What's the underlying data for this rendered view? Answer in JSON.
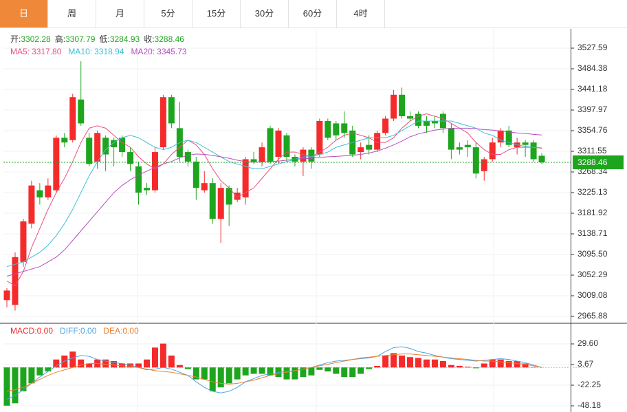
{
  "tabs": [
    "日",
    "周",
    "月",
    "5分",
    "15分",
    "30分",
    "60分",
    "4时"
  ],
  "active_tab": 0,
  "chart_data": [
    {
      "type": "candlestick",
      "up_color": "#f52b2b",
      "down_color": "#1ea51e",
      "info": {
        "open": "开:",
        "high": "高:",
        "low": "低:",
        "close": "收:"
      },
      "open": [
        3000,
        2990,
        3080,
        3160,
        3230,
        3215,
        3230,
        3340,
        3335,
        3420,
        3340,
        3290,
        3340,
        3335,
        3340,
        3310,
        3280,
        3235,
        3230,
        3320,
        3425,
        3360,
        3310,
        3290,
        3230,
        3245,
        3170,
        3235,
        3210,
        3215,
        3295,
        3290,
        3360,
        3300,
        3345,
        3300,
        3290,
        3315,
        3305,
        3375,
        3370,
        3370,
        3355,
        3310,
        3325,
        3315,
        3350,
        3380,
        3430,
        3385,
        3390,
        3375,
        3375,
        3390,
        3360,
        3320,
        3325,
        3320,
        3270,
        3295,
        3330,
        3355,
        3320,
        3330,
        3330,
        3302.28
      ],
      "high": [
        3025,
        3100,
        3170,
        3250,
        3245,
        3255,
        3345,
        3350,
        3432,
        3500,
        3350,
        3355,
        3345,
        3340,
        3345,
        3320,
        3290,
        3245,
        3320,
        3430,
        3430,
        3415,
        3315,
        3300,
        3270,
        3255,
        3245,
        3240,
        3235,
        3300,
        3310,
        3330,
        3365,
        3360,
        3350,
        3305,
        3320,
        3320,
        3380,
        3380,
        3375,
        3395,
        3365,
        3330,
        3345,
        3355,
        3385,
        3440,
        3445,
        3395,
        3395,
        3385,
        3385,
        3395,
        3370,
        3330,
        3335,
        3330,
        3300,
        3340,
        3360,
        3365,
        3340,
        3335,
        3335,
        3307.79
      ],
      "low": [
        2985,
        2978,
        3070,
        3150,
        3200,
        3210,
        3225,
        3320,
        3330,
        3365,
        3280,
        3275,
        3270,
        3280,
        3300,
        3270,
        3200,
        3220,
        3225,
        3315,
        3360,
        3290,
        3280,
        3210,
        3225,
        3160,
        3120,
        3155,
        3205,
        3200,
        3285,
        3280,
        3285,
        3285,
        3290,
        3280,
        3260,
        3275,
        3300,
        3335,
        3335,
        3340,
        3300,
        3295,
        3305,
        3310,
        3345,
        3375,
        3380,
        3375,
        3360,
        3350,
        3360,
        3350,
        3295,
        3305,
        3300,
        3255,
        3250,
        3290,
        3320,
        3320,
        3305,
        3300,
        3290,
        3284.93
      ],
      "close": [
        3020,
        3090,
        3165,
        3240,
        3215,
        3240,
        3340,
        3330,
        3425,
        3370,
        3285,
        3350,
        3305,
        3320,
        3310,
        3285,
        3225,
        3230,
        3310,
        3425,
        3370,
        3300,
        3290,
        3235,
        3245,
        3170,
        3235,
        3200,
        3225,
        3295,
        3290,
        3320,
        3290,
        3355,
        3300,
        3290,
        3315,
        3290,
        3375,
        3340,
        3345,
        3350,
        3305,
        3320,
        3315,
        3350,
        3380,
        3430,
        3385,
        3380,
        3365,
        3365,
        3370,
        3360,
        3315,
        3315,
        3320,
        3265,
        3295,
        3330,
        3355,
        3325,
        3330,
        3325,
        3295,
        3288.46
      ],
      "series": [
        {
          "name": "MA5:",
          "color": "#e8517e",
          "last_label": "3317.80",
          "values": [
            3040,
            3030,
            3060,
            3110,
            3150,
            3190,
            3225,
            3255,
            3290,
            3330,
            3360,
            3365,
            3360,
            3345,
            3330,
            3320,
            3300,
            3285,
            3275,
            3285,
            3305,
            3320,
            3335,
            3325,
            3305,
            3275,
            3250,
            3235,
            3215,
            3225,
            3235,
            3255,
            3275,
            3295,
            3310,
            3310,
            3305,
            3300,
            3310,
            3320,
            3335,
            3345,
            3350,
            3345,
            3340,
            3330,
            3330,
            3340,
            3360,
            3375,
            3385,
            3390,
            3385,
            3380,
            3370,
            3360,
            3350,
            3330,
            3315,
            3305,
            3305,
            3315,
            3320,
            3320,
            3320,
            3317.8
          ]
        },
        {
          "name": "MA10:",
          "color": "#3cbfd8",
          "last_label": "3318.94",
          "values": [
            3070,
            3075,
            3080,
            3090,
            3100,
            3115,
            3135,
            3160,
            3190,
            3225,
            3260,
            3290,
            3315,
            3330,
            3340,
            3345,
            3340,
            3330,
            3320,
            3315,
            3320,
            3330,
            3335,
            3330,
            3320,
            3310,
            3300,
            3290,
            3285,
            3280,
            3275,
            3275,
            3280,
            3285,
            3290,
            3295,
            3300,
            3300,
            3305,
            3310,
            3320,
            3325,
            3330,
            3335,
            3340,
            3340,
            3340,
            3345,
            3355,
            3365,
            3375,
            3375,
            3375,
            3375,
            3375,
            3370,
            3365,
            3360,
            3350,
            3345,
            3335,
            3330,
            3325,
            3322,
            3320,
            3318.94
          ]
        },
        {
          "name": "MA20:",
          "color": "#b54fbf",
          "last_label": "3345.73",
          "values": [
            3050,
            3055,
            3060,
            3065,
            3070,
            3080,
            3090,
            3105,
            3125,
            3145,
            3165,
            3185,
            3205,
            3225,
            3240,
            3252,
            3262,
            3270,
            3278,
            3285,
            3290,
            3298,
            3303,
            3306,
            3305,
            3303,
            3300,
            3297,
            3293,
            3290,
            3289,
            3289,
            3290,
            3291,
            3293,
            3295,
            3296,
            3297,
            3299,
            3300,
            3301,
            3302,
            3303,
            3305,
            3308,
            3312,
            3318,
            3325,
            3333,
            3342,
            3348,
            3352,
            3356,
            3358,
            3360,
            3360,
            3360,
            3359,
            3357,
            3356,
            3354,
            3352,
            3350,
            3349,
            3347,
            3345.73
          ]
        }
      ],
      "ylim": [
        2951.46,
        3567.92
      ],
      "yticks": [
        3527.59,
        3484.38,
        3441.18,
        3397.97,
        3354.76,
        3311.55,
        3268.34,
        3225.13,
        3181.92,
        3138.71,
        {
          "value": 3095.5,
          "label": "3095.50"
        },
        3052.29,
        3009.08,
        2965.88
      ],
      "grid": true
    },
    {
      "type": "macd",
      "up_color": "#f52b2b",
      "down_color": "#1ea51e",
      "hist": {
        "name": "MACD:",
        "last_label": "0.00",
        "values": [
          -48,
          -45,
          -30,
          -20,
          -10,
          -5,
          10,
          15,
          20,
          10,
          5,
          10,
          10,
          8,
          5,
          5,
          5,
          10,
          25,
          30,
          15,
          3,
          -2,
          -15,
          -15,
          -30,
          -25,
          -20,
          -15,
          -10,
          -8,
          -8,
          -10,
          -12,
          -15,
          -15,
          -12,
          -10,
          -3,
          -5,
          -8,
          -12,
          -12,
          -8,
          -2,
          2,
          15,
          18,
          15,
          13,
          12,
          10,
          10,
          8,
          3,
          2,
          1,
          -1,
          5,
          10,
          10,
          8,
          8,
          5,
          0.5,
          0
        ]
      },
      "series": [
        {
          "name": "DIFF:",
          "color": "#4da3e0",
          "last_label": "0.00",
          "values": [
            -40,
            -35,
            -28,
            -20,
            -12,
            -5,
            2,
            8,
            12,
            15,
            14,
            10,
            8,
            6,
            5,
            3,
            0,
            -3,
            -2,
            0,
            -2,
            -6,
            -10,
            -18,
            -25,
            -30,
            -32,
            -30,
            -25,
            -18,
            -14,
            -10,
            -8,
            -6,
            -5,
            -4,
            -2,
            0,
            3,
            6,
            8,
            9,
            10,
            11,
            12,
            14,
            20,
            25,
            26,
            24,
            20,
            18,
            15,
            13,
            11,
            10,
            9,
            8,
            9,
            10,
            11,
            10,
            8,
            6,
            3,
            0
          ]
        },
        {
          "name": "DEA:",
          "color": "#f07f2a",
          "last_label": "0.00",
          "values": [
            -30,
            -28,
            -25,
            -20,
            -15,
            -10,
            -6,
            -3,
            0,
            3,
            5,
            5,
            4,
            3,
            2,
            1,
            0,
            -2,
            -4,
            -5,
            -6,
            -8,
            -10,
            -12,
            -15,
            -18,
            -20,
            -21,
            -20,
            -18,
            -16,
            -13,
            -10,
            -8,
            -6,
            -4,
            -2,
            0,
            2,
            4,
            6,
            8,
            10,
            12,
            13,
            14,
            15,
            16,
            17,
            17,
            16,
            15,
            14,
            13,
            12,
            11,
            10,
            9,
            8,
            8,
            7,
            6,
            5,
            4,
            2,
            0
          ]
        }
      ],
      "ylim": [
        -55.97,
        55.53
      ],
      "yticks": [
        {
          "value": 29.6,
          "label": "29.60"
        },
        3.67,
        -22.25,
        -48.18
      ],
      "grid": true
    }
  ]
}
